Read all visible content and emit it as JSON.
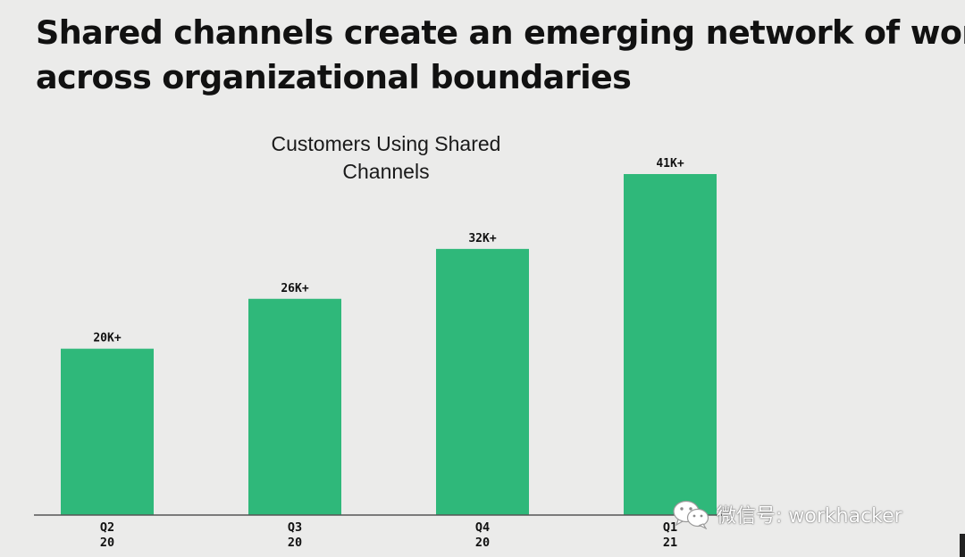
{
  "headline": {
    "line1": "Shared channels create an emerging network of work",
    "line2": "across organizational boundaries"
  },
  "chart_data": {
    "type": "bar",
    "title_lines": [
      "Customers Using Shared",
      "Channels"
    ],
    "categories": [
      [
        "Q2",
        "20"
      ],
      [
        "Q3",
        "20"
      ],
      [
        "Q4",
        "20"
      ],
      [
        "Q1",
        "21"
      ]
    ],
    "values": [
      20000,
      26000,
      32000,
      41000
    ],
    "data_labels": [
      "20K+",
      "26K+",
      "32K+",
      "41K+"
    ],
    "ylim": [
      0,
      41000
    ],
    "grid": false,
    "colors": {
      "bar": "#2fb87a",
      "text": "#111111",
      "background": "#ebebea"
    }
  },
  "watermark": {
    "icon": "wechat-icon",
    "text": "微信号: workhacker"
  }
}
